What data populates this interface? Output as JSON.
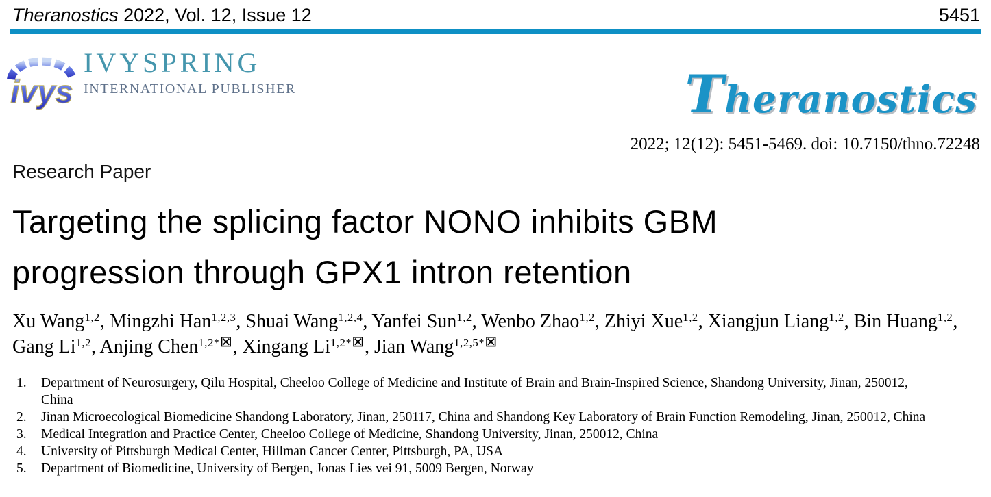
{
  "masthead": {
    "journal_name": "Theranostics",
    "issue_info": " 2022, Vol. 12, Issue 12",
    "page_number": "5451"
  },
  "publisher": {
    "icon_text": "ivys",
    "name": "IVYSPRING",
    "subtitle": "INTERNATIONAL PUBLISHER"
  },
  "journal_logo_text": "Theranostics",
  "citation": "2022; 12(12): 5451-5469. doi: 10.7150/thno.72248",
  "article": {
    "type_label": "Research Paper",
    "title_lines": [
      "Targeting the splicing factor NONO inhibits GBM",
      "progression through GPX1 intron retention"
    ]
  },
  "authors": [
    {
      "name": "Xu Wang",
      "sup": "1,2",
      "corresponding": false
    },
    {
      "name": "Mingzhi Han",
      "sup": "1,2,3",
      "corresponding": false
    },
    {
      "name": "Shuai Wang",
      "sup": "1,2,4",
      "corresponding": false
    },
    {
      "name": "Yanfei Sun",
      "sup": "1,2",
      "corresponding": false
    },
    {
      "name": "Wenbo Zhao",
      "sup": "1,2",
      "corresponding": false
    },
    {
      "name": "Zhiyi Xue",
      "sup": "1,2",
      "corresponding": false
    },
    {
      "name": "Xiangjun Liang",
      "sup": "1,2",
      "corresponding": false
    },
    {
      "name": "Bin Huang",
      "sup": "1,2",
      "corresponding": false
    },
    {
      "name": "Gang Li",
      "sup": "1,2",
      "corresponding": false
    },
    {
      "name": "Anjing Chen",
      "sup": "1,2*",
      "corresponding": true
    },
    {
      "name": "Xingang Li",
      "sup": "1,2*",
      "corresponding": true
    },
    {
      "name": "Jian Wang",
      "sup": "1,2,5*",
      "corresponding": true
    }
  ],
  "affiliations": [
    {
      "num": "1.",
      "text": "Department of Neurosurgery, Qilu Hospital, Cheeloo College of Medicine and Institute of Brain and Brain-Inspired Science, Shandong University, Jinan, 250012, China"
    },
    {
      "num": "2.",
      "text": "Jinan Microecological Biomedicine Shandong Laboratory, Jinan, 250117, China and Shandong Key Laboratory of Brain Function Remodeling, Jinan, 250012, China"
    },
    {
      "num": "3.",
      "text": "Medical Integration and Practice Center, Cheeloo College of Medicine, Shandong University, Jinan, 250012, China"
    },
    {
      "num": "4.",
      "text": "University of Pittsburgh Medical Center, Hillman Cancer Center, Pittsburgh, PA, USA"
    },
    {
      "num": "5.",
      "text": "Department of Biomedicine, University of Bergen, Jonas Lies vei 91, 5009 Bergen, Norway"
    }
  ],
  "icons": {
    "envelope": "⊠"
  },
  "colors": {
    "accent_blue": "#0e90c5",
    "journal_logo_blue": "#1b93c7",
    "publisher_teal": "#4596ad",
    "publisher_grey": "#5f718a"
  }
}
